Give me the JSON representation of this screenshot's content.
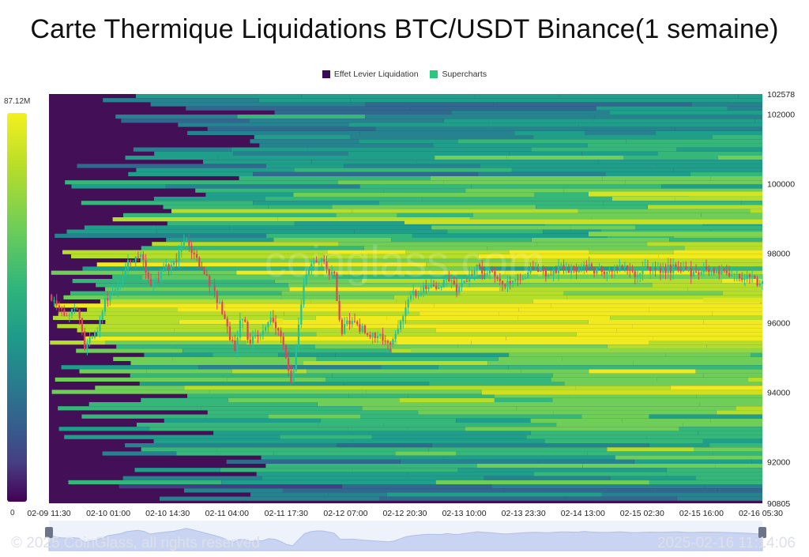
{
  "chart_data": {
    "type": "heatmap",
    "title": "Carte Thermique Liquidations BTC/USDT Binance(1 semaine)",
    "legend": [
      {
        "label": "Effet Levier Liquidation",
        "color": "#440154"
      },
      {
        "label": "Supercharts",
        "color": "#27c97c"
      }
    ],
    "colorbar": {
      "max_label": "87.12M",
      "min_label": "0",
      "max": 87.12,
      "min": 0,
      "unit": "M"
    },
    "y_axis": {
      "min": 90805,
      "max": 102578,
      "ticks": [
        "102578",
        "102000",
        "100000",
        "98000",
        "96000",
        "94000",
        "92000",
        "90805"
      ]
    },
    "x_axis": {
      "ticks": [
        "02-09 11:30",
        "02-10 01:00",
        "02-10 14:30",
        "02-11 04:00",
        "02-11 17:30",
        "02-12 07:00",
        "02-12 20:30",
        "02-13 10:00",
        "02-13 23:30",
        "02-14 13:00",
        "02-15 02:30",
        "02-15 16:00",
        "02-16 05:30"
      ]
    },
    "watermark": "coinglass.com",
    "price_series": {
      "name": "BTC/USDT",
      "x_index": [
        0,
        2,
        4,
        5,
        7,
        8,
        10,
        11,
        13,
        14,
        16,
        18,
        19,
        20,
        22,
        24,
        26,
        27,
        28,
        30,
        31,
        32,
        34,
        36,
        38,
        40,
        41,
        42,
        44,
        46,
        48,
        50,
        51,
        52,
        53,
        55,
        56,
        57,
        58,
        60,
        62,
        64,
        66,
        68,
        70,
        72,
        74,
        75,
        76,
        77,
        78,
        80,
        82,
        84,
        86,
        88,
        90,
        92,
        94,
        96,
        98,
        100
      ],
      "close": [
        96800,
        96200,
        96400,
        95300,
        95900,
        96700,
        97200,
        97700,
        98000,
        97100,
        97500,
        97800,
        98400,
        98100,
        97300,
        96500,
        95200,
        96300,
        95500,
        95700,
        96200,
        95900,
        94300,
        97500,
        97900,
        97300,
        95700,
        96100,
        95800,
        95600,
        95400,
        96500,
        96800,
        96900,
        97100,
        97000,
        97300,
        96900,
        97200,
        97600,
        97400,
        97100,
        97350,
        97500,
        97400,
        97600,
        97500,
        97700,
        97550,
        97500,
        97450,
        97600,
        97400,
        97550,
        97500,
        97600,
        97450,
        97550,
        97500,
        97400,
        97300,
        97100
      ]
    },
    "footer": {
      "copyright": "© 2025 CoinGlass, all rights reserved",
      "timestamp": "2025-02-16 11:14:06"
    }
  }
}
